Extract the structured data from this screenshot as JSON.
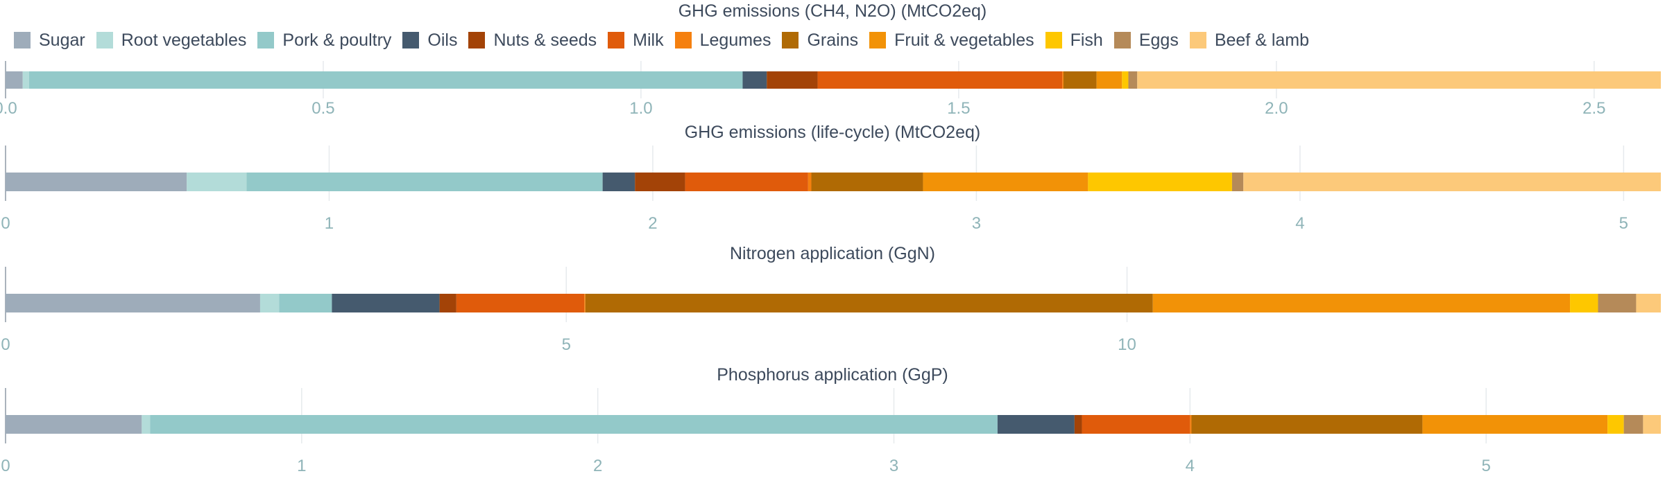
{
  "legend": [
    {
      "label": "Sugar",
      "color": "#9eacba"
    },
    {
      "label": "Root vegetables",
      "color": "#b3dcd9"
    },
    {
      "label": "Pork & poultry",
      "color": "#93c9c9"
    },
    {
      "label": "Oils",
      "color": "#455a6e"
    },
    {
      "label": "Nuts & seeds",
      "color": "#a34307"
    },
    {
      "label": "Milk",
      "color": "#e05b0b"
    },
    {
      "label": "Legumes",
      "color": "#f5800f"
    },
    {
      "label": "Grains",
      "color": "#b06a04"
    },
    {
      "label": "Fruit & vegetables",
      "color": "#f29207"
    },
    {
      "label": "Fish",
      "color": "#fec700"
    },
    {
      "label": "Eggs",
      "color": "#b58a59"
    },
    {
      "label": "Beef & lamb",
      "color": "#fcc97a"
    }
  ],
  "chart_data": [
    {
      "type": "bar",
      "orientation": "horizontal-stacked",
      "title": "GHG emissions (CH4, N2O) (MtCO2eq)",
      "series": [
        {
          "name": "Sugar",
          "values": [
            0.027
          ]
        },
        {
          "name": "Root vegetables",
          "values": [
            0.01
          ]
        },
        {
          "name": "Pork & poultry",
          "values": [
            1.123
          ]
        },
        {
          "name": "Oils",
          "values": [
            0.038
          ]
        },
        {
          "name": "Nuts & seeds",
          "values": [
            0.08
          ]
        },
        {
          "name": "Milk",
          "values": [
            0.385
          ]
        },
        {
          "name": "Legumes",
          "values": [
            0.002
          ]
        },
        {
          "name": "Grains",
          "values": [
            0.052
          ]
        },
        {
          "name": "Fruit & vegetables",
          "values": [
            0.04
          ]
        },
        {
          "name": "Fish",
          "values": [
            0.01
          ]
        },
        {
          "name": "Eggs",
          "values": [
            0.014
          ]
        },
        {
          "name": "Beef & lamb",
          "values": [
            0.824
          ]
        }
      ],
      "xlim": [
        0,
        2.605
      ],
      "ticks": [
        0,
        0.5,
        1,
        1.5,
        2,
        2.5
      ],
      "tick_labels": [
        "0.0",
        "0.5",
        "1.0",
        "1.5",
        "2.0",
        "2.5"
      ]
    },
    {
      "type": "bar",
      "orientation": "horizontal-stacked",
      "title": "GHG emissions (life-cycle) (MtCO2eq)",
      "series": [
        {
          "name": "Sugar",
          "values": [
            0.56
          ]
        },
        {
          "name": "Root vegetables",
          "values": [
            0.185
          ]
        },
        {
          "name": "Pork & poultry",
          "values": [
            1.1
          ]
        },
        {
          "name": "Oils",
          "values": [
            0.1
          ]
        },
        {
          "name": "Nuts & seeds",
          "values": [
            0.155
          ]
        },
        {
          "name": "Milk",
          "values": [
            0.38
          ]
        },
        {
          "name": "Legumes",
          "values": [
            0.01
          ]
        },
        {
          "name": "Grains",
          "values": [
            0.345
          ]
        },
        {
          "name": "Fruit & vegetables",
          "values": [
            0.51
          ]
        },
        {
          "name": "Fish",
          "values": [
            0.445
          ]
        },
        {
          "name": "Eggs",
          "values": [
            0.035
          ]
        },
        {
          "name": "Beef & lamb",
          "values": [
            1.29
          ]
        }
      ],
      "xlim": [
        0,
        5.115
      ],
      "ticks": [
        0,
        1,
        2,
        3,
        4,
        5
      ],
      "tick_labels": [
        "0",
        "1",
        "2",
        "3",
        "4",
        "5"
      ]
    },
    {
      "type": "bar",
      "orientation": "horizontal-stacked",
      "title": "Nitrogen application (GgN)",
      "series": [
        {
          "name": "Sugar",
          "values": [
            2.27
          ]
        },
        {
          "name": "Root vegetables",
          "values": [
            0.17
          ]
        },
        {
          "name": "Pork & poultry",
          "values": [
            0.47
          ]
        },
        {
          "name": "Oils",
          "values": [
            0.96
          ]
        },
        {
          "name": "Nuts & seeds",
          "values": [
            0.15
          ]
        },
        {
          "name": "Milk",
          "values": [
            1.14
          ]
        },
        {
          "name": "Legumes",
          "values": [
            0.01
          ]
        },
        {
          "name": "Grains",
          "values": [
            5.06
          ]
        },
        {
          "name": "Fruit & vegetables",
          "values": [
            3.72
          ]
        },
        {
          "name": "Fish",
          "values": [
            0.25
          ]
        },
        {
          "name": "Eggs",
          "values": [
            0.34
          ]
        },
        {
          "name": "Beef & lamb",
          "values": [
            0.22
          ]
        }
      ],
      "xlim": [
        0,
        14.76
      ],
      "ticks": [
        0,
        5,
        10
      ],
      "tick_labels": [
        "0",
        "5",
        "10"
      ]
    },
    {
      "type": "bar",
      "orientation": "horizontal-stacked",
      "title": "Phosphorus application (GgP)",
      "series": [
        {
          "name": "Sugar",
          "values": [
            0.46
          ]
        },
        {
          "name": "Root vegetables",
          "values": [
            0.028
          ]
        },
        {
          "name": "Pork & poultry",
          "values": [
            2.862
          ]
        },
        {
          "name": "Oils",
          "values": [
            0.26
          ]
        },
        {
          "name": "Nuts & seeds",
          "values": [
            0.025
          ]
        },
        {
          "name": "Milk",
          "values": [
            0.365
          ]
        },
        {
          "name": "Legumes",
          "values": [
            0.005
          ]
        },
        {
          "name": "Grains",
          "values": [
            0.78
          ]
        },
        {
          "name": "Fruit & vegetables",
          "values": [
            0.625
          ]
        },
        {
          "name": "Fish",
          "values": [
            0.055
          ]
        },
        {
          "name": "Eggs",
          "values": [
            0.065
          ]
        },
        {
          "name": "Beef & lamb",
          "values": [
            0.06
          ]
        }
      ],
      "xlim": [
        0,
        5.59
      ],
      "ticks": [
        0,
        1,
        2,
        3,
        4,
        5
      ],
      "tick_labels": [
        "0",
        "1",
        "2",
        "3",
        "4",
        "5"
      ]
    }
  ]
}
